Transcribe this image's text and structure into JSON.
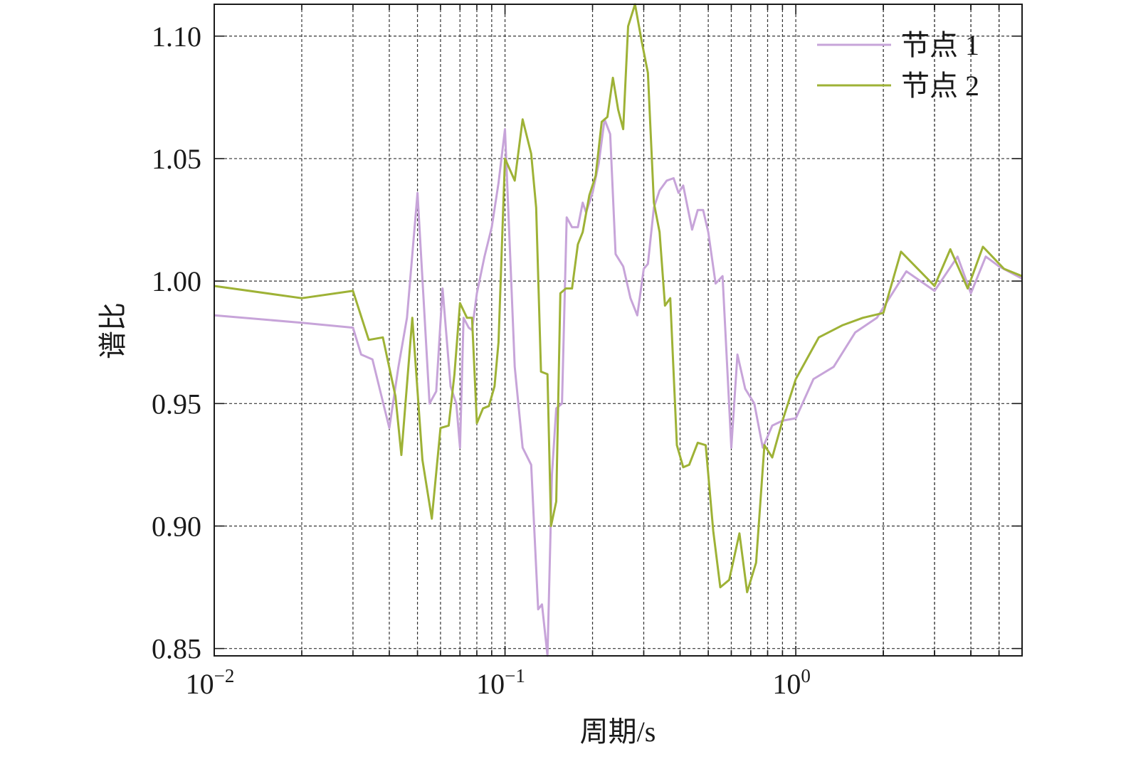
{
  "chart_data": {
    "type": "line",
    "xlabel": "周期/s",
    "ylabel": "谱比",
    "xscale": "log",
    "xlim": [
      0.01,
      6
    ],
    "ylim": [
      0.847,
      1.113
    ],
    "grid": true,
    "legend_position": "top-right",
    "x_tick_labels": [
      {
        "base": "10",
        "exp": "−2",
        "value": 0.01
      },
      {
        "base": "10",
        "exp": "−1",
        "value": 0.1
      },
      {
        "base": "10",
        "exp": "0",
        "value": 1
      }
    ],
    "y_ticks": [
      {
        "value": 0.85,
        "label": "0.85"
      },
      {
        "value": 0.9,
        "label": "0.90"
      },
      {
        "value": 0.95,
        "label": "0.95"
      },
      {
        "value": 1.0,
        "label": "1.00"
      },
      {
        "value": 1.05,
        "label": "1.05"
      },
      {
        "value": 1.1,
        "label": "1.10"
      }
    ],
    "series": [
      {
        "name": "节点 1",
        "color": "#c7a4d9",
        "points": [
          [
            0.01,
            0.986
          ],
          [
            0.02,
            0.983
          ],
          [
            0.03,
            0.981
          ],
          [
            0.032,
            0.97
          ],
          [
            0.035,
            0.968
          ],
          [
            0.04,
            0.94
          ],
          [
            0.043,
            0.965
          ],
          [
            0.046,
            0.985
          ],
          [
            0.05,
            1.036
          ],
          [
            0.055,
            0.95
          ],
          [
            0.058,
            0.955
          ],
          [
            0.061,
            0.997
          ],
          [
            0.065,
            0.957
          ],
          [
            0.068,
            0.95
          ],
          [
            0.07,
            0.932
          ],
          [
            0.072,
            0.985
          ],
          [
            0.075,
            0.981
          ],
          [
            0.077,
            0.98
          ],
          [
            0.08,
            0.995
          ],
          [
            0.085,
            1.01
          ],
          [
            0.09,
            1.022
          ],
          [
            0.095,
            1.04
          ],
          [
            0.1,
            1.062
          ],
          [
            0.108,
            0.965
          ],
          [
            0.115,
            0.932
          ],
          [
            0.123,
            0.925
          ],
          [
            0.13,
            0.866
          ],
          [
            0.134,
            0.868
          ],
          [
            0.14,
            0.847
          ],
          [
            0.145,
            0.921
          ],
          [
            0.15,
            0.948
          ],
          [
            0.157,
            0.95
          ],
          [
            0.163,
            1.026
          ],
          [
            0.17,
            1.022
          ],
          [
            0.178,
            1.022
          ],
          [
            0.185,
            1.032
          ],
          [
            0.19,
            1.028
          ],
          [
            0.2,
            1.036
          ],
          [
            0.21,
            1.048
          ],
          [
            0.22,
            1.066
          ],
          [
            0.23,
            1.06
          ],
          [
            0.24,
            1.011
          ],
          [
            0.255,
            1.006
          ],
          [
            0.27,
            0.993
          ],
          [
            0.285,
            0.986
          ],
          [
            0.3,
            1.005
          ],
          [
            0.31,
            1.007
          ],
          [
            0.325,
            1.03
          ],
          [
            0.34,
            1.037
          ],
          [
            0.36,
            1.041
          ],
          [
            0.38,
            1.042
          ],
          [
            0.395,
            1.036
          ],
          [
            0.41,
            1.039
          ],
          [
            0.44,
            1.021
          ],
          [
            0.46,
            1.029
          ],
          [
            0.48,
            1.029
          ],
          [
            0.5,
            1.02
          ],
          [
            0.53,
            0.999
          ],
          [
            0.56,
            1.002
          ],
          [
            0.6,
            0.932
          ],
          [
            0.63,
            0.97
          ],
          [
            0.67,
            0.956
          ],
          [
            0.72,
            0.95
          ],
          [
            0.77,
            0.932
          ],
          [
            0.83,
            0.941
          ],
          [
            0.9,
            0.943
          ],
          [
            1.0,
            0.944
          ],
          [
            1.15,
            0.96
          ],
          [
            1.35,
            0.965
          ],
          [
            1.6,
            0.979
          ],
          [
            1.9,
            0.985
          ],
          [
            2.4,
            1.004
          ],
          [
            3.0,
            0.996
          ],
          [
            3.6,
            1.01
          ],
          [
            4.0,
            0.995
          ],
          [
            4.5,
            1.01
          ],
          [
            5.0,
            1.006
          ],
          [
            6.0,
            1.001
          ]
        ]
      },
      {
        "name": "节点 2",
        "color": "#9eb236",
        "points": [
          [
            0.01,
            0.998
          ],
          [
            0.02,
            0.993
          ],
          [
            0.03,
            0.996
          ],
          [
            0.034,
            0.976
          ],
          [
            0.038,
            0.977
          ],
          [
            0.042,
            0.953
          ],
          [
            0.044,
            0.929
          ],
          [
            0.048,
            0.985
          ],
          [
            0.052,
            0.927
          ],
          [
            0.056,
            0.903
          ],
          [
            0.06,
            0.94
          ],
          [
            0.064,
            0.941
          ],
          [
            0.067,
            0.962
          ],
          [
            0.07,
            0.991
          ],
          [
            0.074,
            0.985
          ],
          [
            0.077,
            0.985
          ],
          [
            0.08,
            0.942
          ],
          [
            0.084,
            0.948
          ],
          [
            0.088,
            0.949
          ],
          [
            0.092,
            0.957
          ],
          [
            0.095,
            0.975
          ],
          [
            0.1,
            1.05
          ],
          [
            0.108,
            1.041
          ],
          [
            0.115,
            1.066
          ],
          [
            0.123,
            1.052
          ],
          [
            0.128,
            1.03
          ],
          [
            0.133,
            0.963
          ],
          [
            0.14,
            0.962
          ],
          [
            0.144,
            0.9
          ],
          [
            0.15,
            0.91
          ],
          [
            0.155,
            0.995
          ],
          [
            0.162,
            0.997
          ],
          [
            0.17,
            0.997
          ],
          [
            0.178,
            1.015
          ],
          [
            0.185,
            1.02
          ],
          [
            0.195,
            1.035
          ],
          [
            0.205,
            1.043
          ],
          [
            0.215,
            1.065
          ],
          [
            0.225,
            1.067
          ],
          [
            0.235,
            1.083
          ],
          [
            0.245,
            1.07
          ],
          [
            0.255,
            1.062
          ],
          [
            0.265,
            1.104
          ],
          [
            0.28,
            1.113
          ],
          [
            0.295,
            1.098
          ],
          [
            0.31,
            1.085
          ],
          [
            0.325,
            1.032
          ],
          [
            0.34,
            1.02
          ],
          [
            0.355,
            0.99
          ],
          [
            0.37,
            0.993
          ],
          [
            0.39,
            0.933
          ],
          [
            0.41,
            0.924
          ],
          [
            0.43,
            0.925
          ],
          [
            0.46,
            0.934
          ],
          [
            0.49,
            0.933
          ],
          [
            0.52,
            0.898
          ],
          [
            0.55,
            0.875
          ],
          [
            0.59,
            0.878
          ],
          [
            0.64,
            0.897
          ],
          [
            0.68,
            0.873
          ],
          [
            0.73,
            0.885
          ],
          [
            0.78,
            0.933
          ],
          [
            0.83,
            0.928
          ],
          [
            0.9,
            0.943
          ],
          [
            1.0,
            0.96
          ],
          [
            1.2,
            0.977
          ],
          [
            1.45,
            0.982
          ],
          [
            1.7,
            0.985
          ],
          [
            2.0,
            0.987
          ],
          [
            2.3,
            1.012
          ],
          [
            3.0,
            0.998
          ],
          [
            3.4,
            1.013
          ],
          [
            3.9,
            0.997
          ],
          [
            4.4,
            1.014
          ],
          [
            5.2,
            1.005
          ],
          [
            6.0,
            1.002
          ]
        ]
      }
    ]
  }
}
